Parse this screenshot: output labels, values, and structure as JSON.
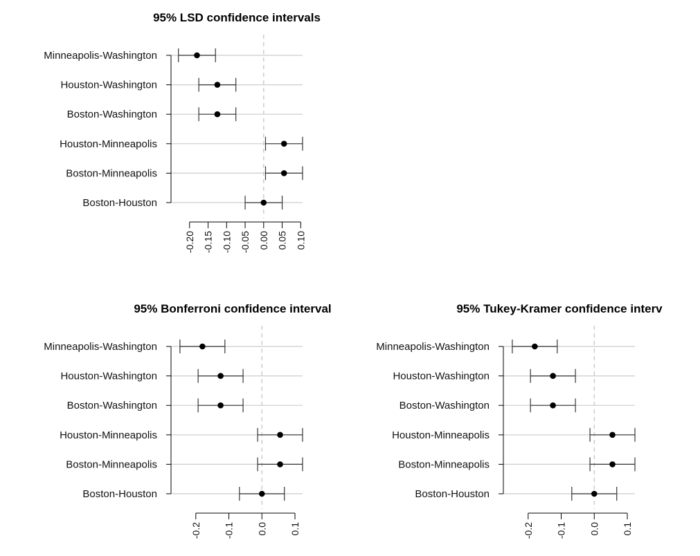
{
  "chart_data": [
    {
      "type": "scatter",
      "subtype": "confidence-interval",
      "title": "95% LSD confidence intervals",
      "categories": [
        "Minneapolis-Washington",
        "Houston-Washington",
        "Boston-Washington",
        "Houston-Minneapolis",
        "Boston-Minneapolis",
        "Boston-Houston"
      ],
      "estimate": [
        -0.18,
        -0.125,
        -0.125,
        0.055,
        0.055,
        0.0
      ],
      "lower": [
        -0.23,
        -0.175,
        -0.175,
        0.005,
        0.005,
        -0.05
      ],
      "upper": [
        -0.13,
        -0.075,
        -0.075,
        0.105,
        0.105,
        0.05
      ],
      "xlim": [
        -0.25,
        0.105
      ],
      "ticks": [
        -0.2,
        -0.15,
        -0.1,
        -0.05,
        0.0,
        0.05,
        0.1
      ],
      "tick_labels": [
        "-0.20",
        "-0.15",
        "-0.10",
        "-0.05",
        "0.00",
        "0.05",
        "0.10"
      ],
      "reference_line": 0
    },
    {
      "type": "scatter",
      "subtype": "confidence-interval",
      "title": "95% Bonferroni confidence interval",
      "categories": [
        "Minneapolis-Washington",
        "Houston-Washington",
        "Boston-Washington",
        "Houston-Minneapolis",
        "Boston-Minneapolis",
        "Boston-Houston"
      ],
      "estimate": [
        -0.18,
        -0.125,
        -0.125,
        0.055,
        0.055,
        0.0
      ],
      "lower": [
        -0.248,
        -0.193,
        -0.193,
        -0.013,
        -0.013,
        -0.068
      ],
      "upper": [
        -0.112,
        -0.057,
        -0.057,
        0.123,
        0.123,
        0.068
      ],
      "xlim": [
        -0.275,
        0.123
      ],
      "ticks": [
        -0.2,
        -0.1,
        0.0,
        0.1
      ],
      "tick_labels": [
        "-0.2",
        "-0.1",
        "0.0",
        "0.1"
      ],
      "reference_line": 0
    },
    {
      "type": "scatter",
      "subtype": "confidence-interval",
      "title": "95% Tukey-Kramer confidence interv",
      "categories": [
        "Minneapolis-Washington",
        "Houston-Washington",
        "Boston-Washington",
        "Houston-Minneapolis",
        "Boston-Minneapolis",
        "Boston-Houston"
      ],
      "estimate": [
        -0.18,
        -0.125,
        -0.125,
        0.055,
        0.055,
        0.0
      ],
      "lower": [
        -0.248,
        -0.193,
        -0.193,
        -0.013,
        -0.013,
        -0.068
      ],
      "upper": [
        -0.112,
        -0.057,
        -0.057,
        0.123,
        0.123,
        0.068
      ],
      "xlim": [
        -0.275,
        0.123
      ],
      "ticks": [
        -0.2,
        -0.1,
        0.0,
        0.1
      ],
      "tick_labels": [
        "-0.2",
        "-0.1",
        "0.0",
        "0.1"
      ],
      "reference_line": 0
    }
  ],
  "colors": {
    "point": "#000000",
    "interval": "#333333",
    "row_line": "#cccccc",
    "reference_line": "#cfcfcf",
    "axis": "#000000"
  }
}
